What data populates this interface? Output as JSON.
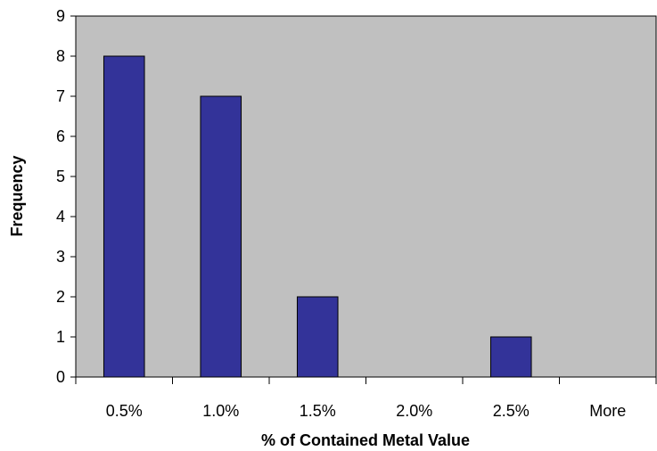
{
  "chart_data": {
    "type": "bar",
    "categories": [
      "0.5%",
      "1.0%",
      "1.5%",
      "2.0%",
      "2.5%",
      "More"
    ],
    "values": [
      8,
      7,
      2,
      0,
      1,
      0
    ],
    "title": "",
    "xlabel": "% of Contained Metal Value",
    "ylabel": "Frequency",
    "ylim": [
      0,
      9
    ],
    "yticks": [
      "0",
      "1",
      "2",
      "3",
      "4",
      "5",
      "6",
      "7",
      "8",
      "9"
    ],
    "grid": false,
    "legend": "none",
    "colors": {
      "plot_background": "#c0c0c0",
      "bar_fill": "#333399",
      "bar_stroke": "#000000"
    }
  }
}
